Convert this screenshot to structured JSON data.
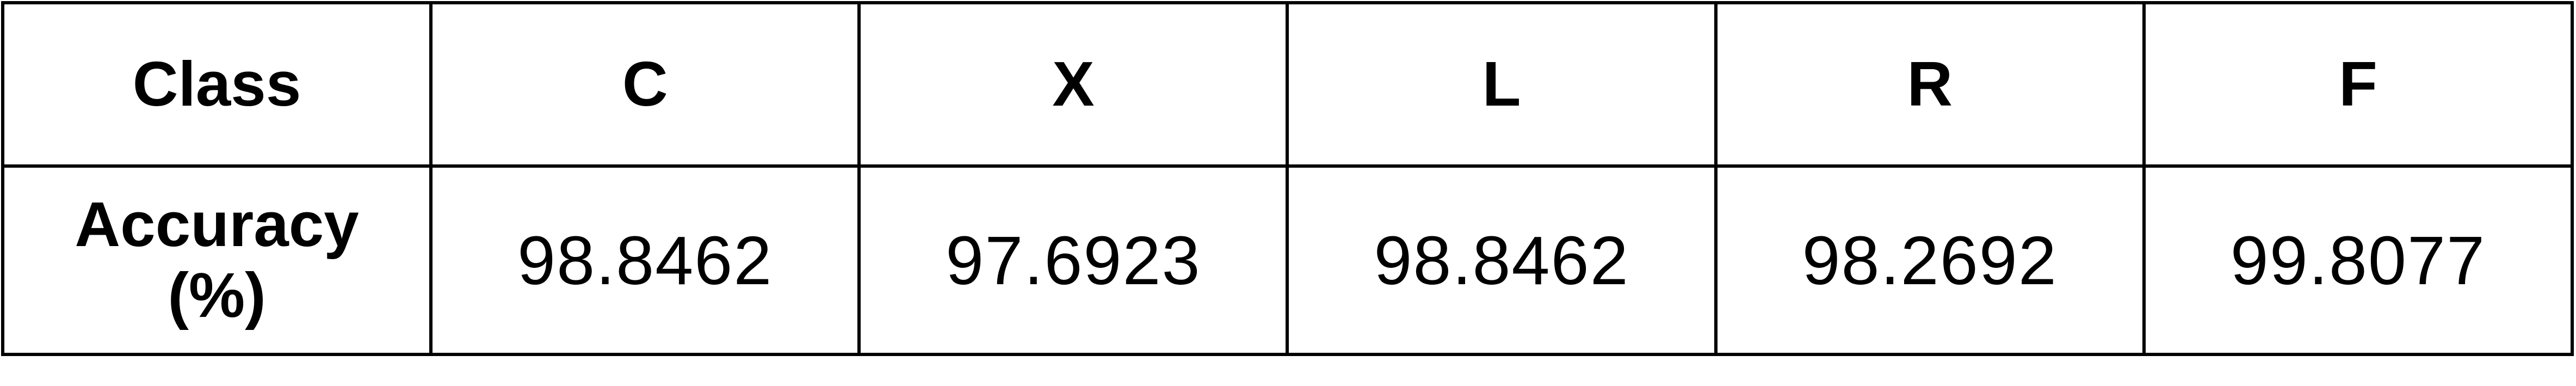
{
  "table": {
    "header_label": "Class",
    "columns": [
      "C",
      "X",
      "L",
      "R",
      "F"
    ],
    "row_label_line1": "Accuracy",
    "row_label_line2": "(%)",
    "values": [
      "98.8462",
      "97.6923",
      "98.8462",
      "98.2692",
      "99.8077"
    ]
  }
}
